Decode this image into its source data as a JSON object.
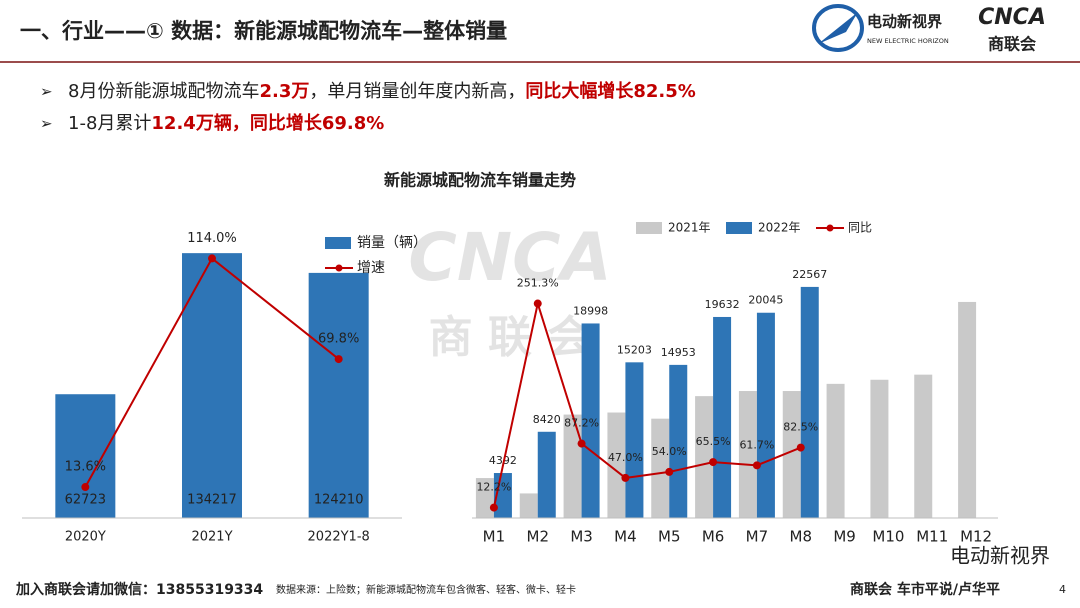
{
  "header": {
    "title": "一、行业——① 数据：新能源城配物流车—整体销量",
    "logo_left": "电动新视界",
    "logo_left_sub": "NEW ELECTRIC HORIZON",
    "logo_right": "CNCA",
    "logo_right_sub": "商联会"
  },
  "bullets": [
    [
      {
        "text": "8月份新能源城配物流车",
        "color": "#222222"
      },
      {
        "text": "2.3万",
        "color": "#c00000"
      },
      {
        "text": "，单月销量创年度内新高，",
        "color": "#222222"
      },
      {
        "text": "同比大幅增长82.5%",
        "color": "#c00000"
      }
    ],
    [
      {
        "text": "1-8月累计",
        "color": "#222222"
      },
      {
        "text": "12.4万辆",
        "color": "#c00000"
      },
      {
        "text": "，同比增长69.8%",
        "color": "#c00000"
      }
    ]
  ],
  "charts_title": "新能源城配物流车销量走势",
  "watermark": {
    "logo": "CNCA",
    "sub": "商 联 会"
  },
  "chart_data": [
    {
      "type": "combo",
      "categories": [
        "2020Y",
        "2021Y",
        "2022Y1-8"
      ],
      "ylim": [
        0,
        150000
      ],
      "y2lim": [
        0,
        130
      ],
      "legend": "top-right",
      "series": [
        {
          "name": "销量（辆）",
          "kind": "bar",
          "color": "#2e75b6",
          "labels": true,
          "values": [
            62723,
            134217,
            124210
          ]
        },
        {
          "name": "增速",
          "kind": "line",
          "color": "#c00000",
          "axis": "y2",
          "labels": true,
          "values": [
            13.6,
            114.0,
            69.8
          ],
          "value_labels": [
            "13.6%",
            "114.0%",
            "69.8%"
          ]
        }
      ]
    },
    {
      "type": "combo",
      "categories": [
        "M1",
        "M2",
        "M3",
        "M4",
        "M5",
        "M6",
        "M7",
        "M8",
        "M9",
        "M10",
        "M11",
        "M12"
      ],
      "ylim": [
        0,
        25000
      ],
      "y2lim": [
        0,
        300
      ],
      "legend": "top",
      "series": [
        {
          "name": "2021年",
          "kind": "bar",
          "color": "#c9c9c9",
          "labels": false,
          "values": [
            3900,
            2400,
            10100,
            10300,
            9700,
            11900,
            12400,
            12400,
            13100,
            13500,
            14000,
            21100
          ]
        },
        {
          "name": "2022年",
          "kind": "bar",
          "color": "#2e75b6",
          "labels": true,
          "values": [
            4392,
            8420,
            18998,
            15203,
            14953,
            19632,
            20045,
            22567,
            null,
            null,
            null,
            null
          ]
        },
        {
          "name": "同比",
          "kind": "line",
          "color": "#c00000",
          "axis": "y2",
          "labels": true,
          "values": [
            12.2,
            251.3,
            87.2,
            47.0,
            54.0,
            65.5,
            61.7,
            82.5,
            null,
            null,
            null,
            null
          ],
          "value_labels": [
            "12.2%",
            "251.3%",
            "87.2%",
            "47.0%",
            "54.0%",
            "65.5%",
            "61.7%",
            "82.5%",
            null,
            null,
            null,
            null
          ]
        }
      ]
    }
  ],
  "footer": {
    "contact": "加入商联会请加微信：13855319334",
    "source": "数据来源：上险数；新能源城配物流车包含微客、轻客、微卡、轻卡",
    "brand": "商联会  车市平说/卢华平",
    "page": "4",
    "stamp": "电动新视界"
  }
}
